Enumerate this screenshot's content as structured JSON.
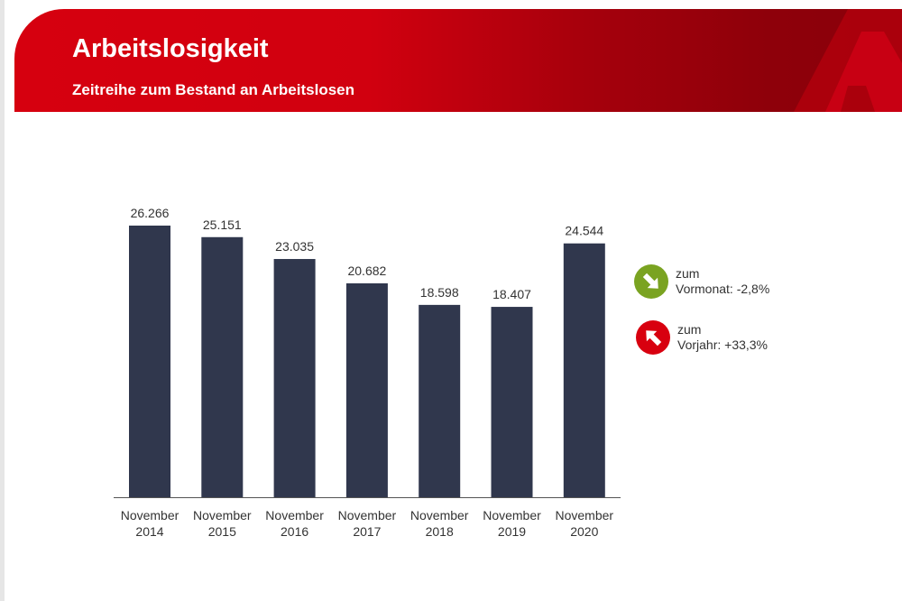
{
  "header": {
    "title": "Arbeitslosigkeit",
    "subtitle": "Zeitreihe zum Bestand an Arbeitslosen"
  },
  "chart_data": {
    "type": "bar",
    "title": "Arbeitslosigkeit",
    "subtitle": "Zeitreihe zum Bestand an Arbeitslosen",
    "categories": [
      [
        "November",
        "2014"
      ],
      [
        "November",
        "2015"
      ],
      [
        "November",
        "2016"
      ],
      [
        "November",
        "2017"
      ],
      [
        "November",
        "2018"
      ],
      [
        "November",
        "2019"
      ],
      [
        "November",
        "2020"
      ]
    ],
    "values": [
      26266,
      25151,
      23035,
      20682,
      18598,
      18407,
      24544
    ],
    "value_labels": [
      "26.266",
      "25.151",
      "23.035",
      "20.682",
      "18.598",
      "18.407",
      "24.544"
    ],
    "xlabel": "",
    "ylabel": "",
    "ylim": [
      0,
      30000
    ],
    "grid": false,
    "bar_color": "#30374d"
  },
  "indicators": [
    {
      "line1": "zum",
      "line2": "Vormonat: -2,8%",
      "direction": "down",
      "color": "#7aa321",
      "icon": "arrow-down-right-icon"
    },
    {
      "line1": "zum",
      "line2": "Vorjahr: +33,3%",
      "direction": "up",
      "color": "#d8000f",
      "icon": "arrow-up-right-icon"
    }
  ]
}
